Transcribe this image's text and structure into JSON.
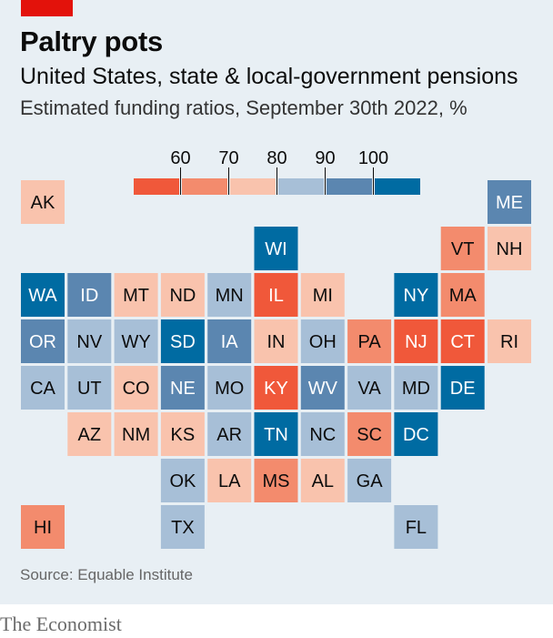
{
  "header": {
    "title": "Paltry pots",
    "subtitle": "United States, state & local-government pensions",
    "description": "Estimated funding ratios, September 30th 2022, %"
  },
  "footer": {
    "source": "Source: Equable Institute",
    "brand": "The Economist"
  },
  "colors": {
    "accent": "#e3120b",
    "background": "#e8eff4",
    "bins": [
      "#f0583a",
      "#f38b6d",
      "#f9c3ad",
      "#a7bfd7",
      "#5b86b0",
      "#006ba2"
    ]
  },
  "chart_data": {
    "type": "tile-map",
    "title": "",
    "legend": {
      "placement": "top-center",
      "ticks": [
        "60",
        "70",
        "80",
        "90",
        "100"
      ],
      "tick_values": [
        60,
        70,
        80,
        90,
        100
      ],
      "bin_count": 6
    },
    "states": [
      {
        "code": "AK",
        "row": 0,
        "col": 0,
        "bin": 2
      },
      {
        "code": "ME",
        "row": 0,
        "col": 10,
        "bin": 4
      },
      {
        "code": "WI",
        "row": 1,
        "col": 5,
        "bin": 5
      },
      {
        "code": "VT",
        "row": 1,
        "col": 9,
        "bin": 1
      },
      {
        "code": "NH",
        "row": 1,
        "col": 10,
        "bin": 2
      },
      {
        "code": "WA",
        "row": 2,
        "col": 0,
        "bin": 5
      },
      {
        "code": "ID",
        "row": 2,
        "col": 1,
        "bin": 4
      },
      {
        "code": "MT",
        "row": 2,
        "col": 2,
        "bin": 2
      },
      {
        "code": "ND",
        "row": 2,
        "col": 3,
        "bin": 2
      },
      {
        "code": "MN",
        "row": 2,
        "col": 4,
        "bin": 3
      },
      {
        "code": "IL",
        "row": 2,
        "col": 5,
        "bin": 0
      },
      {
        "code": "MI",
        "row": 2,
        "col": 6,
        "bin": 2
      },
      {
        "code": "NY",
        "row": 2,
        "col": 8,
        "bin": 5
      },
      {
        "code": "MA",
        "row": 2,
        "col": 9,
        "bin": 1
      },
      {
        "code": "OR",
        "row": 3,
        "col": 0,
        "bin": 4
      },
      {
        "code": "NV",
        "row": 3,
        "col": 1,
        "bin": 3
      },
      {
        "code": "WY",
        "row": 3,
        "col": 2,
        "bin": 3
      },
      {
        "code": "SD",
        "row": 3,
        "col": 3,
        "bin": 5
      },
      {
        "code": "IA",
        "row": 3,
        "col": 4,
        "bin": 4
      },
      {
        "code": "IN",
        "row": 3,
        "col": 5,
        "bin": 2
      },
      {
        "code": "OH",
        "row": 3,
        "col": 6,
        "bin": 3
      },
      {
        "code": "PA",
        "row": 3,
        "col": 7,
        "bin": 1
      },
      {
        "code": "NJ",
        "row": 3,
        "col": 8,
        "bin": 0
      },
      {
        "code": "CT",
        "row": 3,
        "col": 9,
        "bin": 0
      },
      {
        "code": "RI",
        "row": 3,
        "col": 10,
        "bin": 2
      },
      {
        "code": "CA",
        "row": 4,
        "col": 0,
        "bin": 3
      },
      {
        "code": "UT",
        "row": 4,
        "col": 1,
        "bin": 3
      },
      {
        "code": "CO",
        "row": 4,
        "col": 2,
        "bin": 2
      },
      {
        "code": "NE",
        "row": 4,
        "col": 3,
        "bin": 4
      },
      {
        "code": "MO",
        "row": 4,
        "col": 4,
        "bin": 3
      },
      {
        "code": "KY",
        "row": 4,
        "col": 5,
        "bin": 0
      },
      {
        "code": "WV",
        "row": 4,
        "col": 6,
        "bin": 4
      },
      {
        "code": "VA",
        "row": 4,
        "col": 7,
        "bin": 3
      },
      {
        "code": "MD",
        "row": 4,
        "col": 8,
        "bin": 3
      },
      {
        "code": "DE",
        "row": 4,
        "col": 9,
        "bin": 5
      },
      {
        "code": "AZ",
        "row": 5,
        "col": 1,
        "bin": 2
      },
      {
        "code": "NM",
        "row": 5,
        "col": 2,
        "bin": 2
      },
      {
        "code": "KS",
        "row": 5,
        "col": 3,
        "bin": 2
      },
      {
        "code": "AR",
        "row": 5,
        "col": 4,
        "bin": 3
      },
      {
        "code": "TN",
        "row": 5,
        "col": 5,
        "bin": 5
      },
      {
        "code": "NC",
        "row": 5,
        "col": 6,
        "bin": 3
      },
      {
        "code": "SC",
        "row": 5,
        "col": 7,
        "bin": 1
      },
      {
        "code": "DC",
        "row": 5,
        "col": 8,
        "bin": 5
      },
      {
        "code": "OK",
        "row": 6,
        "col": 3,
        "bin": 3
      },
      {
        "code": "LA",
        "row": 6,
        "col": 4,
        "bin": 2
      },
      {
        "code": "MS",
        "row": 6,
        "col": 5,
        "bin": 1
      },
      {
        "code": "AL",
        "row": 6,
        "col": 6,
        "bin": 2
      },
      {
        "code": "GA",
        "row": 6,
        "col": 7,
        "bin": 3
      },
      {
        "code": "HI",
        "row": 7,
        "col": 0,
        "bin": 1
      },
      {
        "code": "TX",
        "row": 7,
        "col": 3,
        "bin": 3
      },
      {
        "code": "FL",
        "row": 7,
        "col": 8,
        "bin": 3
      }
    ]
  }
}
